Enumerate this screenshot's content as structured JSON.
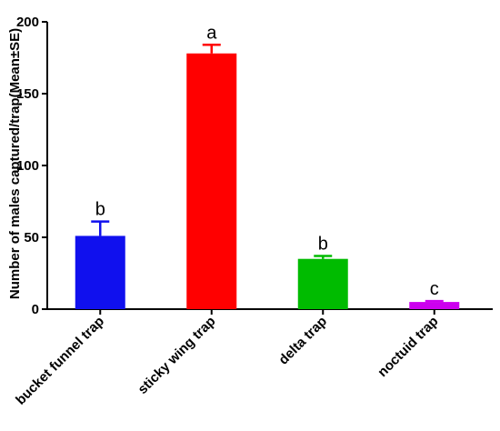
{
  "chart_data": {
    "type": "bar",
    "title": "",
    "xlabel": "",
    "ylabel": "Number of males captured/trap(Mean±SE)",
    "ylim": [
      0,
      200
    ],
    "yticks": [
      0,
      50,
      100,
      150,
      200
    ],
    "categories": [
      "bucket funnel trap",
      "sticky wing trap",
      "delta trap",
      "noctuid trap"
    ],
    "values": [
      51,
      178,
      35,
      5
    ],
    "errors": [
      10,
      6,
      2,
      0.6
    ],
    "significance": [
      "b",
      "a",
      "b",
      "c"
    ],
    "colors": [
      "#1010ee",
      "#ff0000",
      "#00bb00",
      "#cc00ee"
    ],
    "grid": false,
    "legend": "none"
  }
}
